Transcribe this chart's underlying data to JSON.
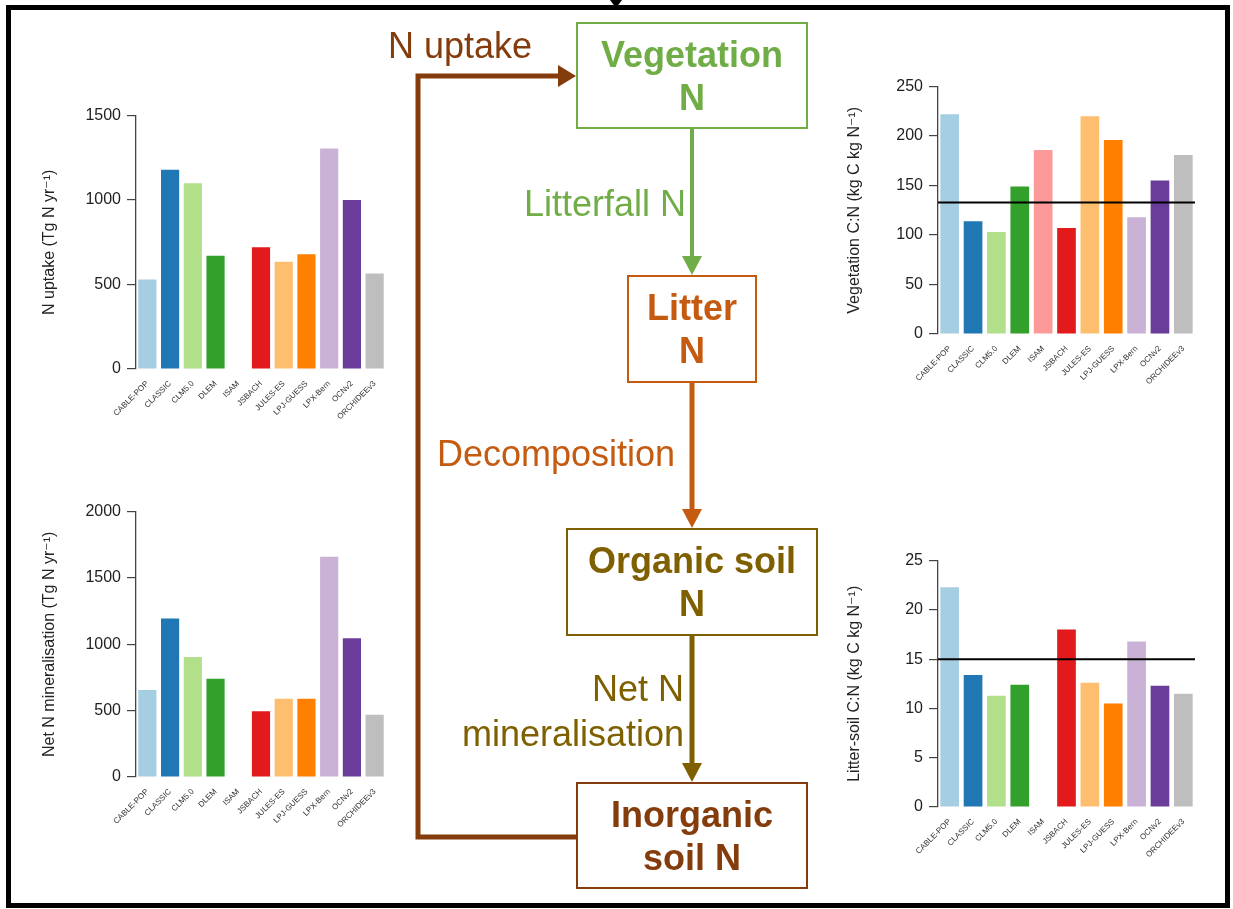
{
  "chart_data": [
    {
      "type": "bar",
      "ylabel": "N uptake (Tg N yr⁻¹)",
      "categories": [
        "CABLE-POP",
        "CLASSIC",
        "CLM5.0",
        "DLEM",
        "ISAM",
        "JSBACH",
        "JULES-ES",
        "LPJ-GUESS",
        "LPX-Bern",
        "OCNv2",
        "ORCHIDEEv3"
      ],
      "values": [
        530,
        1180,
        1100,
        670,
        null,
        720,
        635,
        680,
        1305,
        1000,
        565
      ],
      "colors": [
        "#a6cee3",
        "#1f78b4",
        "#b2df8a",
        "#33a02c",
        "#fb9a99",
        "#e31a1c",
        "#fdbf6f",
        "#ff7f00",
        "#cab2d6",
        "#6a3d9a",
        "#bebebe"
      ],
      "ylim": [
        0,
        1500
      ],
      "yticks": [
        0,
        500,
        1000,
        1500
      ]
    },
    {
      "type": "other",
      "annotations": [
        "N uptake",
        "Vegetation N",
        "Litterfall N",
        "Litter N",
        "Decomposition",
        "Organic soil N",
        "Net N mineralisation",
        "Inorganic soil N"
      ]
    },
    {
      "type": "bar",
      "ylabel": "Vegetation C:N (kg C kg N⁻¹)",
      "categories": [
        "CABLE-POP",
        "CLASSIC",
        "CLM5.0",
        "DLEM",
        "ISAM",
        "JSBACH",
        "JULES-ES",
        "LPJ-GUESS",
        "LPX-Bern",
        "OCNv2",
        "ORCHIDEEv3"
      ],
      "values": [
        222,
        114,
        103,
        149,
        186,
        107,
        220,
        196,
        118,
        155,
        181
      ],
      "colors": [
        "#a6cee3",
        "#1f78b4",
        "#b2df8a",
        "#33a02c",
        "#fb9a99",
        "#e31a1c",
        "#fdbf6f",
        "#ff7f00",
        "#cab2d6",
        "#6a3d9a",
        "#bebebe"
      ],
      "ylim": [
        0,
        250
      ],
      "yticks": [
        0,
        50,
        100,
        150,
        200,
        250
      ],
      "ref_lines": [
        {
          "axis": "y",
          "value": 133,
          "color": "#000000"
        }
      ]
    },
    {
      "type": "bar",
      "ylabel": "Net N mineralisation (Tg N yr⁻¹)",
      "categories": [
        "CABLE-POP",
        "CLASSIC",
        "CLM5.0",
        "DLEM",
        "ISAM",
        "JSBACH",
        "JULES-ES",
        "LPJ-GUESS",
        "LPX-Bern",
        "OCNv2",
        "ORCHIDEEv3"
      ],
      "values": [
        655,
        1195,
        905,
        740,
        null,
        495,
        590,
        590,
        1660,
        1045,
        470
      ],
      "colors": [
        "#a6cee3",
        "#1f78b4",
        "#b2df8a",
        "#33a02c",
        "#fb9a99",
        "#e31a1c",
        "#fdbf6f",
        "#ff7f00",
        "#cab2d6",
        "#6a3d9a",
        "#bebebe"
      ],
      "ylim": [
        0,
        2000
      ],
      "yticks": [
        0,
        500,
        1000,
        1500,
        2000
      ]
    },
    {
      "type": "bar",
      "ylabel": "Litter-soil C:N (kg C kg N⁻¹)",
      "categories": [
        "CABLE-POP",
        "CLASSIC",
        "CLM5.0",
        "DLEM",
        "ISAM",
        "JSBACH",
        "JULES-ES",
        "LPJ-GUESS",
        "LPX-Bern",
        "OCNv2",
        "ORCHIDEEv3"
      ],
      "values": [
        22.3,
        13.4,
        11.3,
        12.4,
        null,
        18.0,
        12.6,
        10.5,
        16.8,
        12.3,
        11.5
      ],
      "colors": [
        "#a6cee3",
        "#1f78b4",
        "#b2df8a",
        "#33a02c",
        "#fb9a99",
        "#e31a1c",
        "#fdbf6f",
        "#ff7f00",
        "#cab2d6",
        "#6a3d9a",
        "#bebebe"
      ],
      "ylim": [
        0,
        25
      ],
      "yticks": [
        0,
        5,
        10,
        15,
        20,
        25
      ],
      "ref_lines": [
        {
          "axis": "y",
          "value": 15,
          "color": "#000000"
        }
      ]
    }
  ]
}
